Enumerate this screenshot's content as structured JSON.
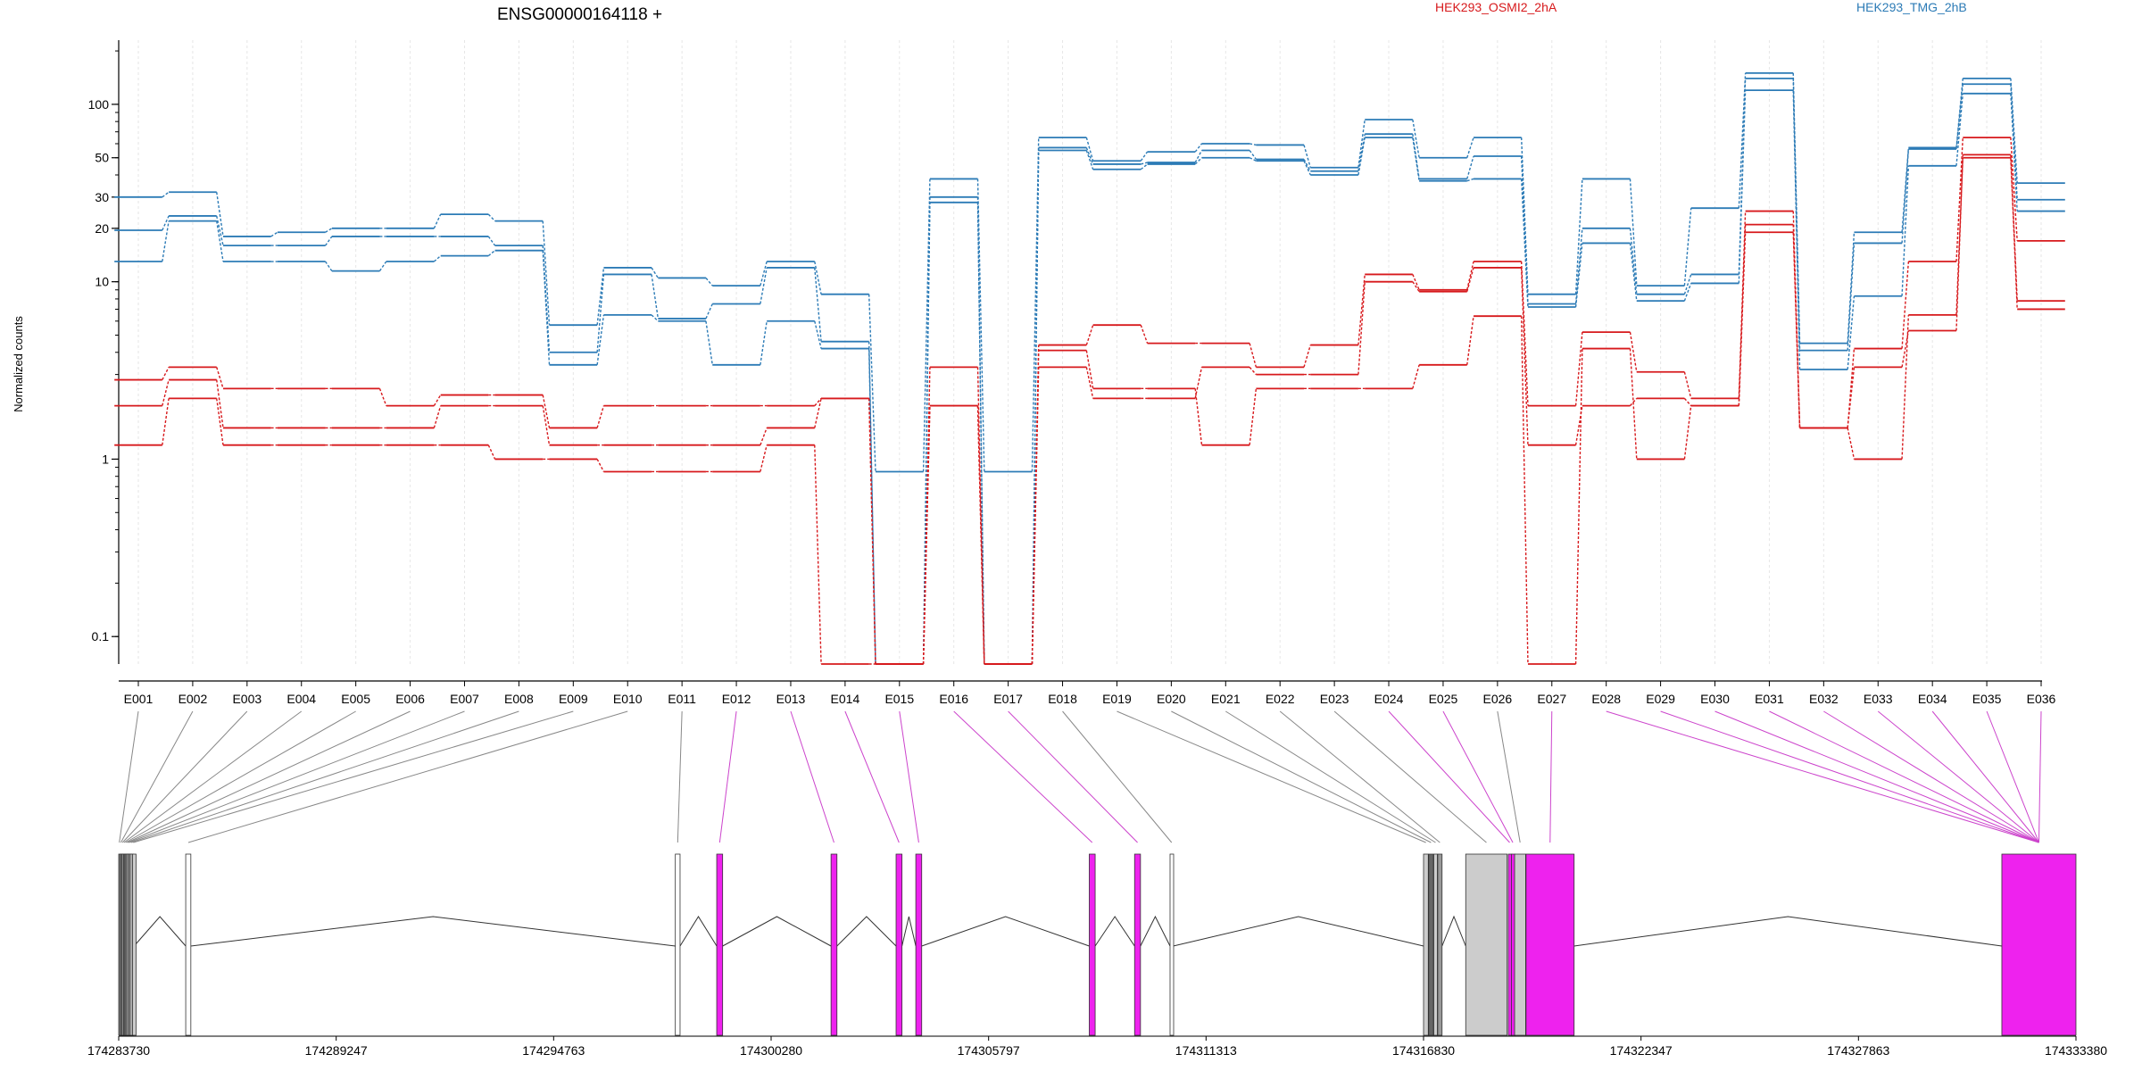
{
  "chart_data": {
    "type": "line",
    "title": "ENSG00000164118 +",
    "ylabel": "Normalized counts",
    "yscale": "log",
    "ylim": [
      0.07,
      230
    ],
    "yticks": [
      0.1,
      1,
      10,
      20,
      30,
      50,
      100
    ],
    "legend": [
      {
        "name": "HEK293_OSMI2_2hA",
        "color": "#d7191c"
      },
      {
        "name": "HEK293_TMG_2hB",
        "color": "#2c7bb6"
      }
    ],
    "categories": [
      "E001",
      "E002",
      "E003",
      "E004",
      "E005",
      "E006",
      "E007",
      "E008",
      "E009",
      "E010",
      "E011",
      "E012",
      "E013",
      "E014",
      "E015",
      "E016",
      "E017",
      "E018",
      "E019",
      "E020",
      "E021",
      "E022",
      "E023",
      "E024",
      "E025",
      "E026",
      "E027",
      "E028",
      "E029",
      "E030",
      "E031",
      "E032",
      "E033",
      "E034",
      "E035",
      "E036"
    ],
    "series": [
      {
        "group": "HEK293_TMG_2hB",
        "color": "#2c7bb6",
        "values": [
          30,
          32,
          18,
          19,
          20,
          20,
          24,
          22,
          5.7,
          12,
          10.5,
          9.5,
          13,
          8.5,
          0.85,
          38,
          0.85,
          65,
          48,
          54,
          60,
          59,
          44,
          82,
          50,
          65,
          8.5,
          38,
          9.5,
          26,
          150,
          4.5,
          19,
          57,
          140,
          36
        ]
      },
      {
        "group": "HEK293_TMG_2hB",
        "color": "#2c7bb6",
        "values": [
          19.5,
          23.5,
          16,
          16,
          18,
          18,
          18,
          16,
          4,
          11,
          6.2,
          7.5,
          12,
          4.6,
          0.07,
          30,
          0.07,
          57,
          46,
          47,
          55,
          49,
          42,
          68,
          38,
          51,
          7.5,
          20,
          8.5,
          11,
          140,
          4.1,
          16.5,
          56,
          130,
          29
        ]
      },
      {
        "group": "HEK293_TMG_2hB",
        "color": "#2c7bb6",
        "values": [
          13,
          22,
          13,
          13,
          11.5,
          13,
          14,
          15,
          3.4,
          6.5,
          6,
          3.4,
          6,
          4.2,
          0.07,
          28,
          0.07,
          55,
          43,
          46,
          50,
          48,
          40,
          65,
          37,
          38,
          7.2,
          16.5,
          7.8,
          9.8,
          120,
          3.2,
          8.3,
          45,
          115,
          25
        ]
      },
      {
        "group": "HEK293_OSMI2_2hA",
        "color": "#d7191c",
        "values": [
          2.8,
          3.3,
          2.5,
          2.5,
          2.5,
          2,
          2.3,
          2.3,
          1.5,
          2,
          2,
          2,
          2,
          2.2,
          0.07,
          3.3,
          0.07,
          4.4,
          5.7,
          4.5,
          4.5,
          3.3,
          4.4,
          11,
          9,
          13,
          2,
          5.2,
          3.1,
          2.2,
          25,
          1.5,
          4.2,
          13,
          65,
          17
        ]
      },
      {
        "group": "HEK293_OSMI2_2hA",
        "color": "#d7191c",
        "values": [
          2,
          2.8,
          1.5,
          1.5,
          1.5,
          1.5,
          2,
          2,
          1.2,
          1.2,
          1.2,
          1.2,
          1.5,
          2.2,
          0.07,
          2,
          0.07,
          3.3,
          2.2,
          2.2,
          3.3,
          3,
          3,
          10,
          8.8,
          12,
          1.2,
          2,
          2.2,
          2,
          21,
          1.5,
          3.3,
          5.3,
          52,
          7.8
        ]
      },
      {
        "group": "HEK293_OSMI2_2hA",
        "color": "#d7191c",
        "values": [
          1.2,
          2.2,
          1.2,
          1.2,
          1.2,
          1.2,
          1.2,
          1,
          1,
          0.85,
          0.85,
          0.85,
          1.2,
          0.07,
          0.07,
          2,
          0.07,
          4.1,
          2.5,
          2.5,
          1.2,
          2.5,
          2.5,
          2.5,
          3.4,
          6.4,
          0.07,
          4.2,
          1,
          2,
          19,
          1.5,
          1,
          6.5,
          50,
          7
        ]
      }
    ],
    "gene_model": {
      "coord_ticks": [
        "174283730",
        "174289247",
        "174294763",
        "174300280",
        "174305797",
        "174311313",
        "174316830",
        "174322347",
        "174327863",
        "174333380"
      ],
      "exons": [
        {
          "start": 174283730,
          "end": 174283760,
          "fill": "#888888"
        },
        {
          "start": 174283770,
          "end": 174283800,
          "fill": "#777777"
        },
        {
          "start": 174283810,
          "end": 174283840,
          "fill": "#999999"
        },
        {
          "start": 174283850,
          "end": 174283880,
          "fill": "#666666"
        },
        {
          "start": 174283890,
          "end": 174283920,
          "fill": "#888888"
        },
        {
          "start": 174283930,
          "end": 174283960,
          "fill": "#bbbbbb"
        },
        {
          "start": 174283970,
          "end": 174284000,
          "fill": "#999999"
        },
        {
          "start": 174284010,
          "end": 174284070,
          "fill": "#aaaaaa"
        },
        {
          "start": 174284080,
          "end": 174284120,
          "fill": "#cccccc"
        },
        {
          "start": 174285430,
          "end": 174285560,
          "fill": "#ffffff"
        },
        {
          "start": 174297850,
          "end": 174297970,
          "fill": "#ffffff"
        },
        {
          "start": 174298900,
          "end": 174299050,
          "fill": "#ee22ee"
        },
        {
          "start": 174301800,
          "end": 174301950,
          "fill": "#ee22ee"
        },
        {
          "start": 174303450,
          "end": 174303600,
          "fill": "#ee22ee"
        },
        {
          "start": 174303950,
          "end": 174304100,
          "fill": "#ee22ee"
        },
        {
          "start": 174308350,
          "end": 174308500,
          "fill": "#ee22ee"
        },
        {
          "start": 174309500,
          "end": 174309650,
          "fill": "#ee22ee"
        },
        {
          "start": 174310400,
          "end": 174310480,
          "fill": "#ffffff"
        },
        {
          "start": 174316830,
          "end": 174316950,
          "fill": "#cccccc"
        },
        {
          "start": 174316960,
          "end": 174317080,
          "fill": "#666666"
        },
        {
          "start": 174317090,
          "end": 174317180,
          "fill": "#cccccc"
        },
        {
          "start": 174317190,
          "end": 174317300,
          "fill": "#999999"
        },
        {
          "start": 174317900,
          "end": 174318950,
          "fill": "#cccccc"
        },
        {
          "start": 174318980,
          "end": 174319050,
          "fill": "#ee22ee"
        },
        {
          "start": 174319060,
          "end": 174319130,
          "fill": "#ee22ee"
        },
        {
          "start": 174319140,
          "end": 174319420,
          "fill": "#cccccc"
        },
        {
          "start": 174319430,
          "end": 174320650,
          "fill": "#ee22ee"
        },
        {
          "start": 174331500,
          "end": 174333380,
          "fill": "#ee22ee"
        }
      ]
    }
  }
}
